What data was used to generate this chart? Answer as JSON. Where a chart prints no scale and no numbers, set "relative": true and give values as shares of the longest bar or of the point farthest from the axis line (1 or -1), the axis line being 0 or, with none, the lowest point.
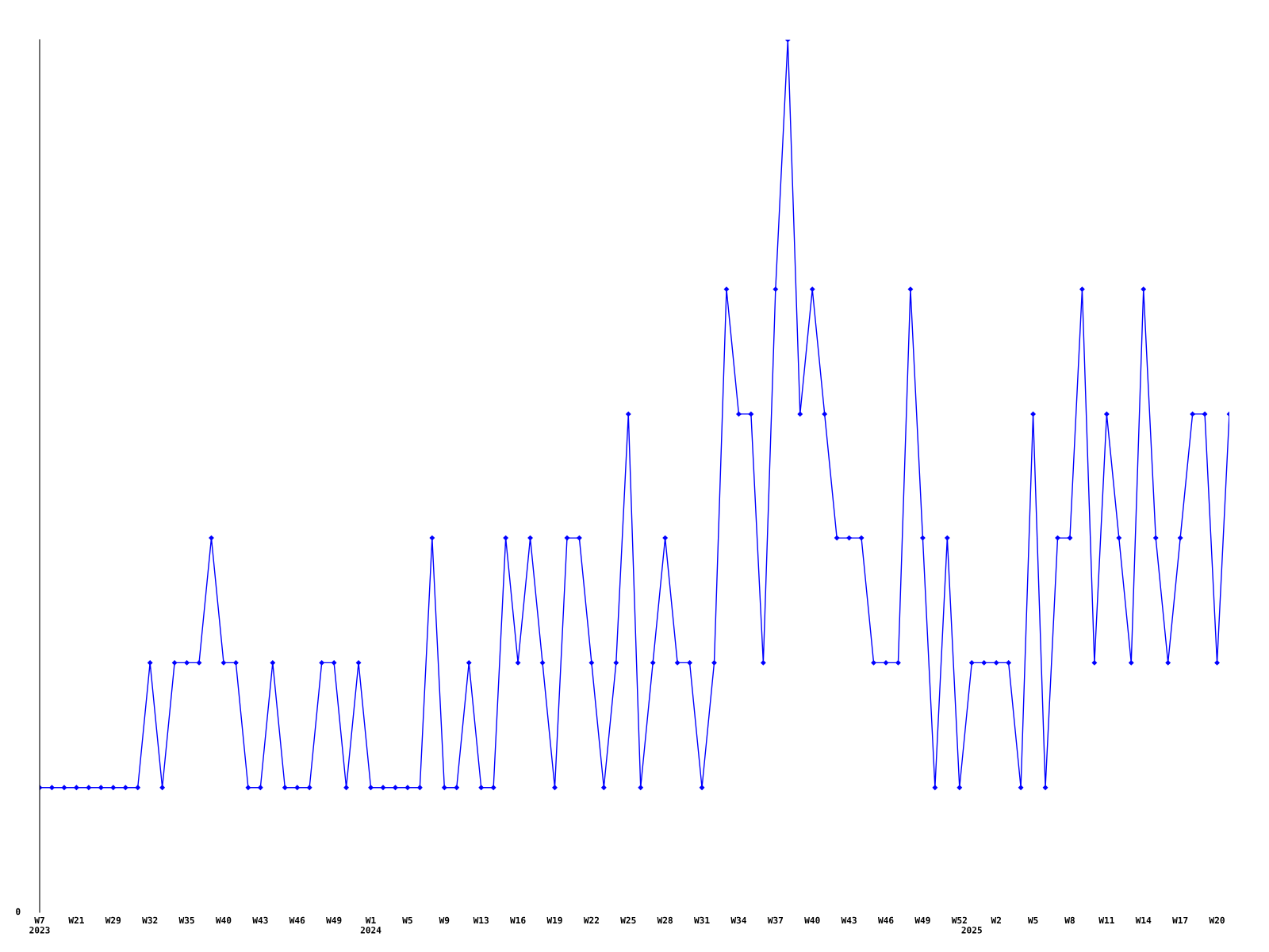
{
  "chart_data": {
    "type": "line",
    "relative": true,
    "tick_labels": "x",
    "grid": false,
    "legend": false,
    "marker": "diamond",
    "line_style": "solid",
    "annotations": [
      "0"
    ],
    "categories": [
      "W7\n2023",
      null,
      null,
      "W21",
      null,
      null,
      "W29",
      null,
      null,
      "W32",
      null,
      null,
      "W35",
      null,
      null,
      "W40",
      null,
      null,
      "W43",
      null,
      null,
      "W46",
      null,
      null,
      "W49",
      null,
      null,
      "W1\n2024",
      null,
      null,
      "W5",
      null,
      null,
      "W9",
      null,
      null,
      "W13",
      null,
      null,
      "W16",
      null,
      null,
      "W19",
      null,
      null,
      "W22",
      null,
      null,
      "W25",
      null,
      null,
      "W28",
      null,
      null,
      "W31",
      null,
      null,
      "W34",
      null,
      null,
      "W37",
      null,
      null,
      "W40",
      null,
      null,
      "W43",
      null,
      null,
      "W46",
      null,
      null,
      "W49",
      null,
      null,
      "W52",
      "\n2025",
      null,
      "W2",
      null,
      null,
      "W5",
      null,
      null,
      "W8",
      null,
      null,
      "W11",
      null,
      null,
      "W14",
      null,
      null,
      "W17",
      null,
      null,
      "W20",
      null
    ],
    "series": [
      {
        "color": "#0000ff",
        "values": [
          0.143,
          0.143,
          0.143,
          0.143,
          0.143,
          0.143,
          0.143,
          0.143,
          0.143,
          0.286,
          0.143,
          0.286,
          0.286,
          0.286,
          0.429,
          0.286,
          0.286,
          0.143,
          0.143,
          0.286,
          0.143,
          0.143,
          0.143,
          0.286,
          0.286,
          0.143,
          0.286,
          0.143,
          0.143,
          0.143,
          0.143,
          0.143,
          0.429,
          0.143,
          0.143,
          0.286,
          0.143,
          0.143,
          0.429,
          0.286,
          0.429,
          0.286,
          0.143,
          0.429,
          0.429,
          0.286,
          0.143,
          0.286,
          0.571,
          0.143,
          0.286,
          0.429,
          0.286,
          0.286,
          0.143,
          0.286,
          0.714,
          0.571,
          0.571,
          0.286,
          0.714,
          1,
          0.571,
          0.714,
          0.571,
          0.429,
          0.429,
          0.429,
          0.286,
          0.286,
          0.286,
          0.714,
          0.429,
          0.143,
          0.429,
          0.143,
          0.286,
          0.286,
          0.286,
          0.286,
          0.143,
          0.571,
          0.143,
          0.429,
          0.429,
          0.714,
          0.286,
          0.571,
          0.429,
          0.286,
          0.714,
          0.429,
          0.286,
          0.429,
          0.571,
          0.571,
          0.286,
          0.571
        ]
      }
    ]
  }
}
